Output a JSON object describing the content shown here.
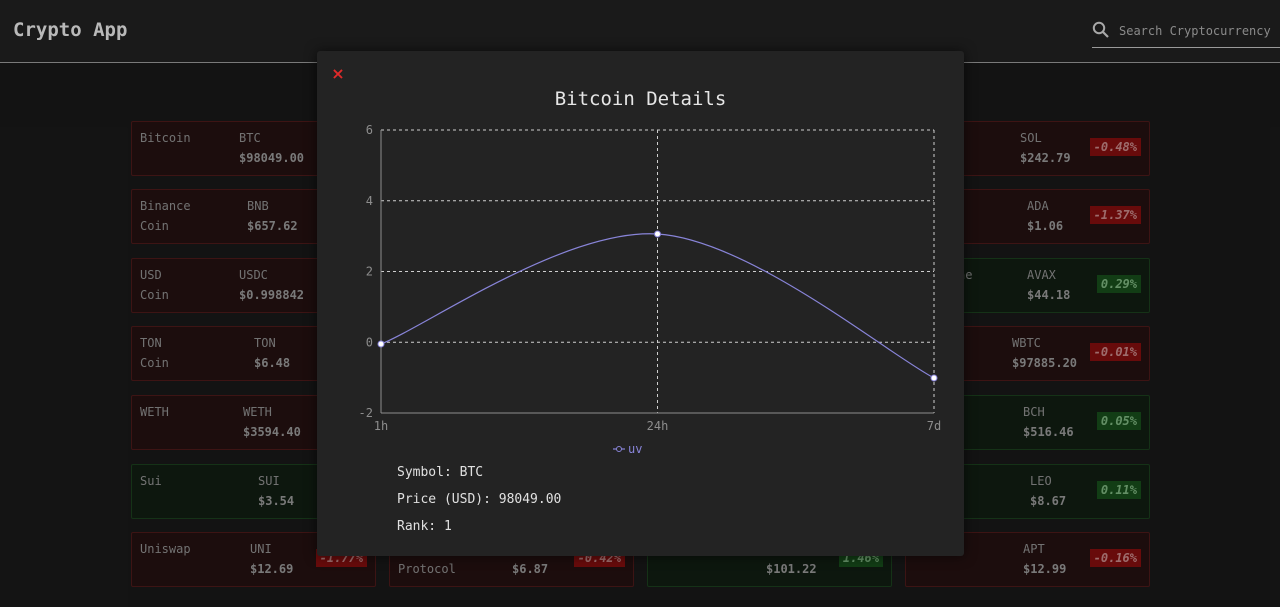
{
  "app": {
    "title": "Crypto App"
  },
  "search": {
    "placeholder": "Search Cryptocurrency"
  },
  "cards": [
    {
      "name": "Bitcoin",
      "symbol": "BTC",
      "price": "$98049.00",
      "change": "",
      "trend": "neg"
    },
    {
      "name": "Binance\nCoin",
      "symbol": "BNB",
      "price": "$657.62",
      "change": "",
      "trend": "neg"
    },
    {
      "name": "USD\nCoin",
      "symbol": "USDC",
      "price": "$0.998842",
      "change": "",
      "trend": "neg"
    },
    {
      "name": "TON\nCoin",
      "symbol": "TON",
      "price": "$6.48",
      "change": "",
      "trend": "neg"
    },
    {
      "name": "WETH",
      "symbol": "WETH",
      "price": "$3594.40",
      "change": "",
      "trend": "neg"
    },
    {
      "name": "Sui",
      "symbol": "SUI",
      "price": "$3.54",
      "change": "",
      "trend": "pos"
    },
    {
      "name": "Uniswap",
      "symbol": "UNI",
      "price": "$12.69",
      "change": "-1.77%",
      "trend": "neg"
    },
    {
      "name": "Protocol",
      "symbol": "",
      "price": "$6.87",
      "change": "-0.42%",
      "trend": "neg"
    },
    {
      "name": "",
      "symbol": "",
      "price": "$101.22",
      "change": "1.46%",
      "trend": "pos"
    },
    {
      "name": "",
      "symbol": "SOL",
      "price": "$242.79",
      "change": "-0.48%",
      "trend": "neg"
    },
    {
      "name": "",
      "symbol": "ADA",
      "price": "$1.06",
      "change": "-1.37%",
      "trend": "neg"
    },
    {
      "name": "he",
      "symbol": "AVAX",
      "price": "$44.18",
      "change": "0.29%",
      "trend": "pos"
    },
    {
      "name": "",
      "symbol": "WBTC",
      "price": "$97885.20",
      "change": "-0.01%",
      "trend": "neg"
    },
    {
      "name": "",
      "symbol": "BCH",
      "price": "$516.46",
      "change": "0.05%",
      "trend": "pos"
    },
    {
      "name": "",
      "symbol": "LEO",
      "price": "$8.67",
      "change": "0.11%",
      "trend": "pos"
    },
    {
      "name": "",
      "symbol": "APT",
      "price": "$12.99",
      "change": "-0.16%",
      "trend": "neg"
    }
  ],
  "modal": {
    "close_label": "×",
    "title": "Bitcoin Details",
    "info": [
      {
        "label": "Symbol:",
        "value": "BTC"
      },
      {
        "label": "Price (USD):",
        "value": "98049.00"
      },
      {
        "label": "Rank:",
        "value": "1"
      }
    ]
  },
  "chart_data": {
    "type": "line",
    "x": [
      "1h",
      "24h",
      "7d"
    ],
    "series": [
      {
        "name": "uv",
        "values": [
          -0.05,
          3.06,
          -1.01
        ],
        "color": "#8884d8"
      }
    ],
    "ylim": [
      -2,
      6
    ],
    "yticks": [
      "-2",
      "0",
      "2",
      "4",
      "6"
    ],
    "grid": true,
    "legend": "bottom"
  },
  "colors": {
    "negative": "#9a1111",
    "positive": "#1b5a1f",
    "close": "#e02a2a"
  }
}
